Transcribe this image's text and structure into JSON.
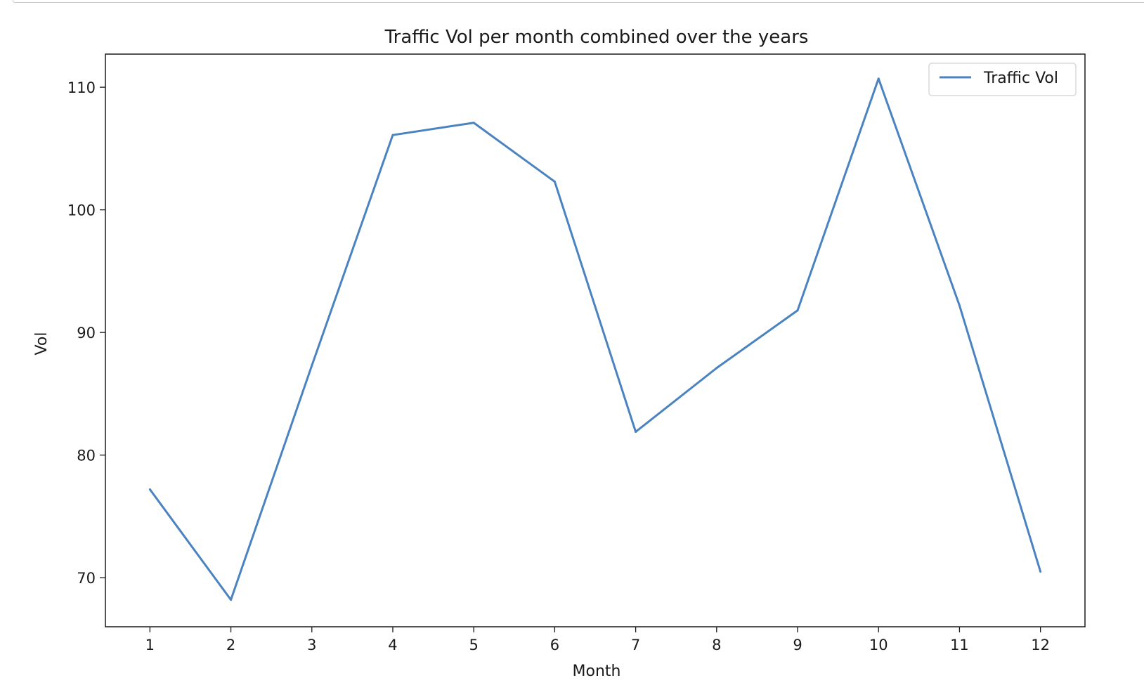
{
  "chart_data": {
    "type": "line",
    "title": "Traffic Vol per month combined over the years",
    "xlabel": "Month",
    "ylabel": "Vol",
    "x": [
      1,
      2,
      3,
      4,
      5,
      6,
      7,
      8,
      9,
      10,
      11,
      12
    ],
    "xticks": [
      "1",
      "2",
      "3",
      "4",
      "5",
      "6",
      "7",
      "8",
      "9",
      "10",
      "11",
      "12"
    ],
    "yticks": [
      70,
      80,
      90,
      100,
      110
    ],
    "xlim": [
      0.45,
      12.55
    ],
    "ylim": [
      66.0,
      112.7
    ],
    "grid": false,
    "legend_position": "top-right",
    "series": [
      {
        "name": "Traffic Vol",
        "color": "#4a83c0",
        "values": [
          77.2,
          68.2,
          87.3,
          106.1,
          107.1,
          102.3,
          81.9,
          87.1,
          91.8,
          110.7,
          92.2,
          70.5
        ]
      }
    ]
  }
}
